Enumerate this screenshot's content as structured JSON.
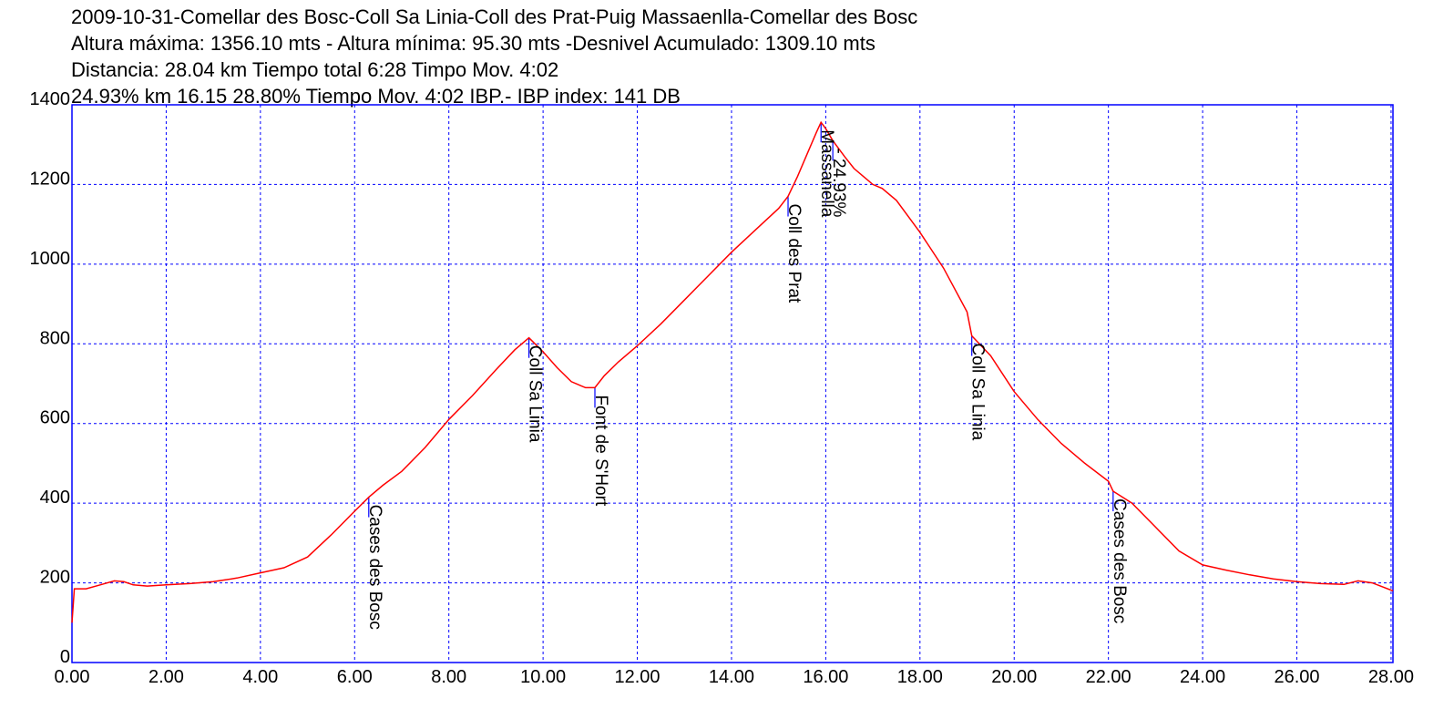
{
  "header": {
    "line1": "2009-10-31-Comellar des Bosc-Coll Sa Linia-Coll des Prat-Puig Massaenlla-Comellar des Bosc",
    "line2": "Altura máxima: 1356.10 mts - Altura mínima: 95.30 mts -Desnivel Acumulado: 1309.10 mts",
    "line3": "Distancia: 28.04 km  Tiempo total 6:28 Timpo Mov. 4:02",
    "line4": "24.93% km 16.15  28.80%  Tiempo Mov. 4:02 IBP.- IBP index: 141 DB"
  },
  "colors": {
    "profile": "#ff0000",
    "grid": "#0000ff",
    "marker": "#0000ff"
  },
  "chart_data": {
    "type": "line",
    "xlim": [
      0,
      28.04
    ],
    "ylim": [
      0,
      1400
    ],
    "x_ticks": [
      "0.00",
      "2.00",
      "4.00",
      "6.00",
      "8.00",
      "10.00",
      "12.00",
      "14.00",
      "16.00",
      "18.00",
      "20.00",
      "22.00",
      "24.00",
      "26.00",
      "28.00"
    ],
    "y_ticks": [
      "0",
      "200",
      "400",
      "600",
      "800",
      "1000",
      "1200",
      "1400"
    ],
    "grid": true,
    "series": [
      {
        "points": [
          [
            0.0,
            100
          ],
          [
            0.05,
            185
          ],
          [
            0.3,
            185
          ],
          [
            0.6,
            195
          ],
          [
            0.9,
            205
          ],
          [
            1.1,
            203
          ],
          [
            1.3,
            195
          ],
          [
            1.6,
            192
          ],
          [
            2.0,
            195
          ],
          [
            2.5,
            198
          ],
          [
            3.0,
            203
          ],
          [
            3.5,
            212
          ],
          [
            4.0,
            225
          ],
          [
            4.5,
            238
          ],
          [
            5.0,
            265
          ],
          [
            5.5,
            320
          ],
          [
            6.0,
            380
          ],
          [
            6.3,
            415
          ],
          [
            6.6,
            445
          ],
          [
            7.0,
            480
          ],
          [
            7.5,
            540
          ],
          [
            8.0,
            610
          ],
          [
            8.5,
            670
          ],
          [
            9.0,
            735
          ],
          [
            9.4,
            785
          ],
          [
            9.7,
            815
          ],
          [
            10.0,
            780
          ],
          [
            10.3,
            740
          ],
          [
            10.6,
            705
          ],
          [
            10.9,
            690
          ],
          [
            11.1,
            690
          ],
          [
            11.3,
            720
          ],
          [
            11.6,
            755
          ],
          [
            12.0,
            795
          ],
          [
            12.5,
            850
          ],
          [
            13.0,
            910
          ],
          [
            13.5,
            970
          ],
          [
            14.0,
            1030
          ],
          [
            14.5,
            1085
          ],
          [
            15.0,
            1140
          ],
          [
            15.2,
            1170
          ],
          [
            15.4,
            1220
          ],
          [
            15.6,
            1275
          ],
          [
            15.8,
            1330
          ],
          [
            15.9,
            1356
          ],
          [
            16.0,
            1340
          ],
          [
            16.15,
            1310
          ],
          [
            16.4,
            1270
          ],
          [
            16.6,
            1240
          ],
          [
            16.8,
            1220
          ],
          [
            17.0,
            1200
          ],
          [
            17.2,
            1190
          ],
          [
            17.5,
            1160
          ],
          [
            18.0,
            1080
          ],
          [
            18.5,
            990
          ],
          [
            19.0,
            880
          ],
          [
            19.1,
            820
          ],
          [
            19.5,
            770
          ],
          [
            20.0,
            680
          ],
          [
            20.5,
            610
          ],
          [
            21.0,
            550
          ],
          [
            21.5,
            500
          ],
          [
            22.0,
            455
          ],
          [
            22.1,
            430
          ],
          [
            22.5,
            400
          ],
          [
            23.0,
            340
          ],
          [
            23.5,
            280
          ],
          [
            24.0,
            245
          ],
          [
            24.5,
            232
          ],
          [
            25.0,
            220
          ],
          [
            25.5,
            210
          ],
          [
            26.0,
            203
          ],
          [
            26.5,
            198
          ],
          [
            27.0,
            196
          ],
          [
            27.3,
            205
          ],
          [
            27.6,
            200
          ],
          [
            28.04,
            180
          ]
        ]
      }
    ],
    "annotations": [
      {
        "label": "Cases des Bosc",
        "x": 6.3,
        "y": 415
      },
      {
        "label": "Coll Sa Linia",
        "x": 9.7,
        "y": 815
      },
      {
        "label": "Font de S'Hort",
        "x": 11.1,
        "y": 690
      },
      {
        "label": "Coll des Prat",
        "x": 15.2,
        "y": 1170
      },
      {
        "label": "Massanella",
        "x": 15.9,
        "y": 1356
      },
      {
        "label": "- 24.93%",
        "x": 16.15,
        "y": 1310
      },
      {
        "label": "Coll Sa Linia",
        "x": 19.1,
        "y": 820
      },
      {
        "label": "Cases des Bosc",
        "x": 22.1,
        "y": 430
      }
    ]
  }
}
